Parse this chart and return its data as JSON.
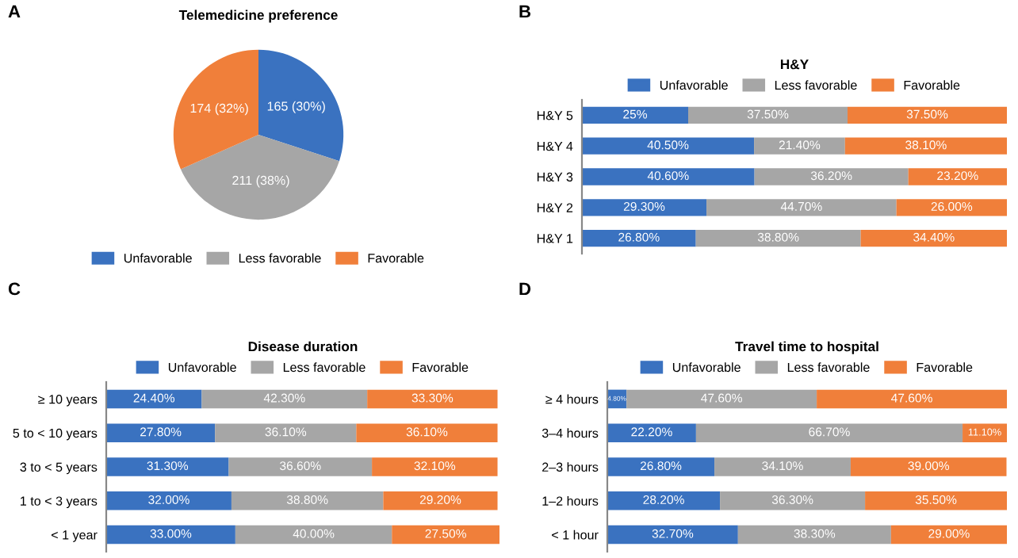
{
  "chart_data": [
    {
      "type": "pie",
      "title": "Telemedicine preference",
      "annotations": [
        "A"
      ],
      "categories": [
        "Unfavorable",
        "Less favorable",
        "Favorable"
      ],
      "values": [
        165,
        211,
        174
      ],
      "value_labels": [
        "165 (30%)",
        "211 (38%)",
        "174 (32%)"
      ],
      "colors": [
        "#3a72c0",
        "#a6a6a6",
        "#f07f3a"
      ],
      "legend": "bottom"
    },
    {
      "type": "bar",
      "orientation": "horizontal",
      "stacked": true,
      "title": "H&Y",
      "annotations": [
        "B"
      ],
      "categories": [
        "H&Y 5",
        "H&Y 4",
        "H&Y 3",
        "H&Y 2",
        "H&Y 1"
      ],
      "xlim": [
        0,
        100
      ],
      "tick_labels": "y",
      "legend": "top",
      "series": [
        {
          "name": "Unfavorable",
          "color": "#3a72c0",
          "values": [
            25,
            40.5,
            40.6,
            29.3,
            26.8
          ],
          "value_labels": [
            "25%",
            "40.50%",
            "40.60%",
            "29.30%",
            "26.80%"
          ]
        },
        {
          "name": "Less favorable",
          "color": "#a6a6a6",
          "values": [
            37.5,
            21.4,
            36.2,
            44.7,
            38.8
          ],
          "value_labels": [
            "37.50%",
            "21.40%",
            "36.20%",
            "44.70%",
            "38.80%"
          ]
        },
        {
          "name": "Favorable",
          "color": "#f07f3a",
          "values": [
            37.5,
            38.1,
            23.2,
            26.0,
            34.4
          ],
          "value_labels": [
            "37.50%",
            "38.10%",
            "23.20%",
            "26.00%",
            "34.40%"
          ]
        }
      ]
    },
    {
      "type": "bar",
      "orientation": "horizontal",
      "stacked": true,
      "title": "Disease duration",
      "annotations": [
        "C"
      ],
      "categories": [
        "≥ 10 years",
        "5 to < 10 years",
        "3 to < 5 years",
        "1 to < 3 years",
        "< 1 year"
      ],
      "xlim": [
        0,
        100.5
      ],
      "tick_labels": "y",
      "legend": "top",
      "series": [
        {
          "name": "Unfavorable",
          "color": "#3a72c0",
          "values": [
            24.4,
            27.8,
            31.3,
            32.0,
            33.0
          ],
          "value_labels": [
            "24.40%",
            "27.80%",
            "31.30%",
            "32.00%",
            "33.00%"
          ]
        },
        {
          "name": "Less favorable",
          "color": "#a6a6a6",
          "values": [
            42.3,
            36.1,
            36.6,
            38.8,
            40.0
          ],
          "value_labels": [
            "42.30%",
            "36.10%",
            "36.60%",
            "38.80%",
            "40.00%"
          ]
        },
        {
          "name": "Favorable",
          "color": "#f07f3a",
          "values": [
            33.3,
            36.1,
            32.1,
            29.2,
            27.5
          ],
          "value_labels": [
            "33.30%",
            "36.10%",
            "32.10%",
            "29.20%",
            "27.50%"
          ]
        }
      ]
    },
    {
      "type": "bar",
      "orientation": "horizontal",
      "stacked": true,
      "title": "Travel time to hospital",
      "annotations": [
        "D"
      ],
      "categories": [
        "≥ 4 hours",
        "3–4 hours",
        "2–3 hours",
        "1–2 hours",
        "< 1 hour"
      ],
      "xlim": [
        0,
        100
      ],
      "tick_labels": "y",
      "legend": "top",
      "series": [
        {
          "name": "Unfavorable",
          "color": "#3a72c0",
          "values": [
            4.8,
            22.2,
            26.8,
            28.2,
            32.7
          ],
          "value_labels": [
            "4.80%",
            "22.20%",
            "26.80%",
            "28.20%",
            "32.70%"
          ]
        },
        {
          "name": "Less favorable",
          "color": "#a6a6a6",
          "values": [
            47.6,
            66.7,
            34.1,
            36.3,
            38.3
          ],
          "value_labels": [
            "47.60%",
            "66.70%",
            "34.10%",
            "36.30%",
            "38.30%"
          ]
        },
        {
          "name": "Favorable",
          "color": "#f07f3a",
          "values": [
            47.6,
            11.1,
            39.0,
            35.5,
            29.0
          ],
          "value_labels": [
            "47.60%",
            "11.10%",
            "39.00%",
            "35.50%",
            "29.00%"
          ]
        }
      ]
    }
  ]
}
